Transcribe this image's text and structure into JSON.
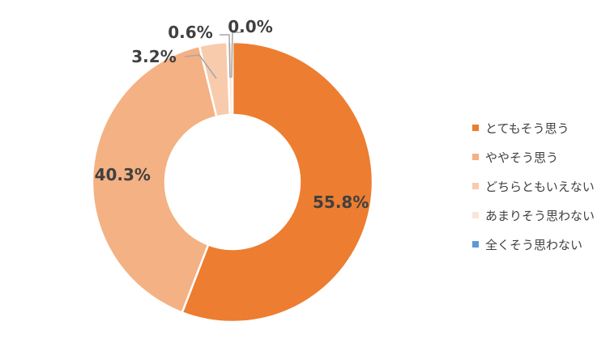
{
  "chart_data": {
    "type": "pie",
    "donut": true,
    "title": "",
    "categories": [
      "とてもそう思う",
      "ややそう思う",
      "どちらともいえない",
      "あまりそう思わない",
      "全くそう思わない"
    ],
    "values": [
      55.8,
      40.3,
      3.2,
      0.6,
      0.0
    ],
    "labels": [
      "55.8%",
      "40.3%",
      "3.2%",
      "0.6%",
      "0.0%"
    ],
    "colors": [
      "#ED7D31",
      "#F4B183",
      "#F8CBAD",
      "#FBE5D6",
      "#5B9BD5"
    ],
    "legend_position": "right"
  }
}
